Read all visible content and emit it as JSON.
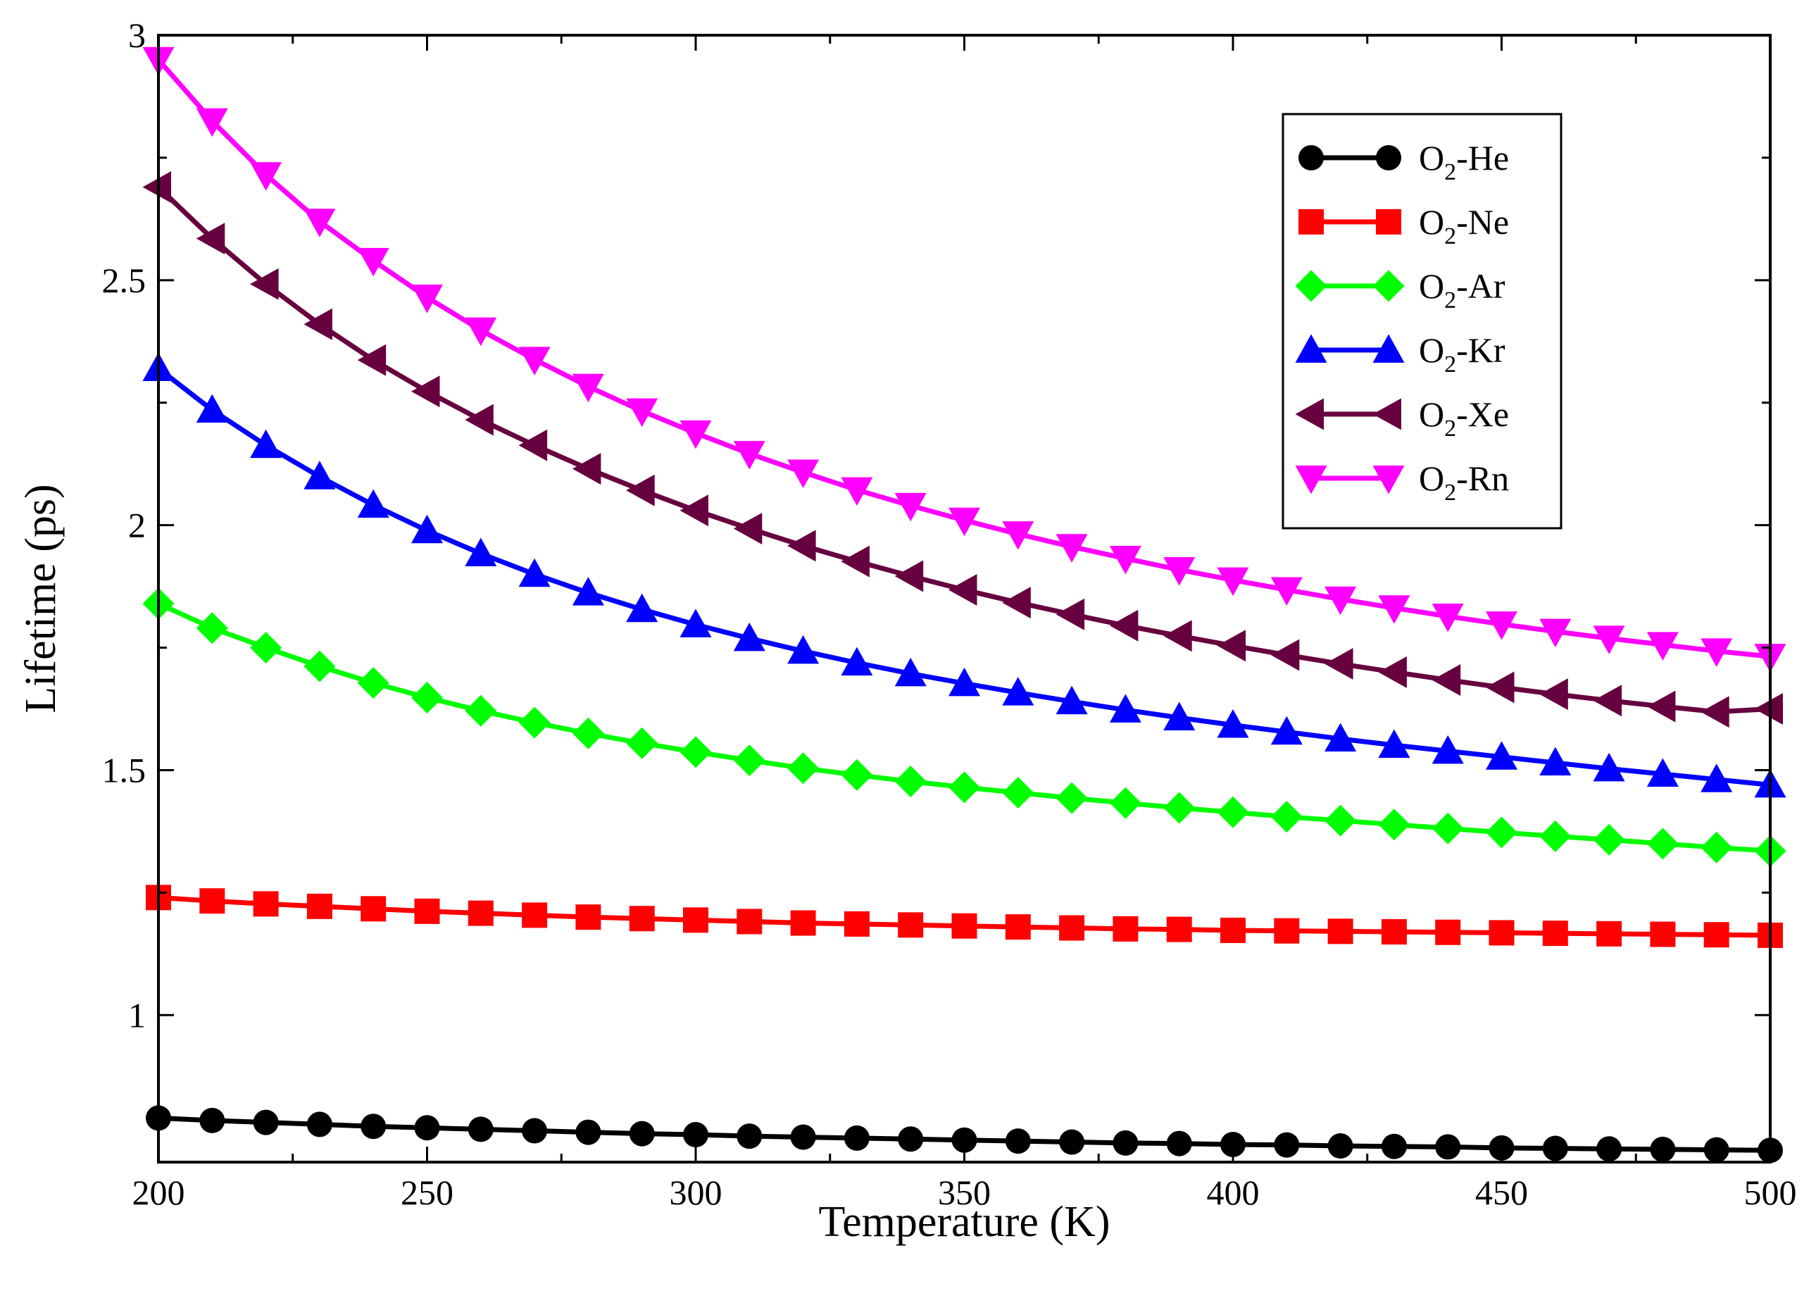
{
  "chart_data": {
    "type": "line",
    "title": "",
    "xlabel": "Temperature (K)",
    "ylabel": "Lifetime (ps)",
    "xlim": [
      200,
      500
    ],
    "ylim": [
      0.7,
      3
    ],
    "x_ticks": [
      "200",
      "250",
      "300",
      "350",
      "400",
      "450",
      "500"
    ],
    "y_ticks": [
      "1",
      "1.5",
      "2",
      "2.5",
      "3"
    ],
    "legend_position": "top-right",
    "x": [
      200,
      210,
      220,
      230,
      240,
      250,
      260,
      270,
      280,
      290,
      300,
      310,
      320,
      330,
      340,
      350,
      360,
      370,
      380,
      390,
      400,
      410,
      420,
      430,
      440,
      450,
      460,
      470,
      480,
      490,
      500
    ],
    "series": [
      {
        "name": "O2-He",
        "legend_base": "O",
        "legend_sub": "2",
        "legend_suffix": "-He",
        "color": "#000000",
        "marker": "circle",
        "values": [
          0.79,
          0.785,
          0.781,
          0.777,
          0.773,
          0.77,
          0.767,
          0.764,
          0.761,
          0.758,
          0.756,
          0.753,
          0.751,
          0.749,
          0.747,
          0.745,
          0.743,
          0.741,
          0.739,
          0.738,
          0.736,
          0.735,
          0.733,
          0.732,
          0.731,
          0.729,
          0.728,
          0.727,
          0.726,
          0.725,
          0.724
        ]
      },
      {
        "name": "O2-Ne",
        "legend_base": "O",
        "legend_sub": "2",
        "legend_suffix": "-Ne",
        "color": "#ff0000",
        "marker": "square",
        "values": [
          1.24,
          1.233,
          1.227,
          1.222,
          1.217,
          1.212,
          1.208,
          1.204,
          1.2,
          1.197,
          1.194,
          1.191,
          1.188,
          1.186,
          1.184,
          1.182,
          1.18,
          1.178,
          1.176,
          1.175,
          1.173,
          1.172,
          1.171,
          1.17,
          1.169,
          1.168,
          1.167,
          1.166,
          1.165,
          1.164,
          1.163
        ]
      },
      {
        "name": "O2-Ar",
        "legend_base": "O",
        "legend_sub": "2",
        "legend_suffix": "-Ar",
        "color": "#00ff00",
        "marker": "diamond",
        "values": [
          1.84,
          1.79,
          1.75,
          1.712,
          1.678,
          1.648,
          1.621,
          1.597,
          1.575,
          1.555,
          1.537,
          1.52,
          1.504,
          1.49,
          1.477,
          1.465,
          1.454,
          1.443,
          1.433,
          1.423,
          1.414,
          1.405,
          1.397,
          1.389,
          1.381,
          1.373,
          1.365,
          1.358,
          1.35,
          1.342,
          1.335
        ]
      },
      {
        "name": "O2-Kr",
        "legend_base": "O",
        "legend_sub": "2",
        "legend_suffix": "-Kr",
        "color": "#0000ff",
        "marker": "triangle-up",
        "values": [
          2.32,
          2.235,
          2.163,
          2.099,
          2.041,
          1.989,
          1.942,
          1.9,
          1.862,
          1.828,
          1.797,
          1.769,
          1.743,
          1.719,
          1.697,
          1.677,
          1.658,
          1.64,
          1.623,
          1.607,
          1.592,
          1.578,
          1.564,
          1.551,
          1.539,
          1.527,
          1.515,
          1.503,
          1.492,
          1.481,
          1.47
        ]
      },
      {
        "name": "O2-Xe",
        "legend_base": "O",
        "legend_sub": "2",
        "legend_suffix": "-Xe",
        "color": "#67003f",
        "marker": "triangle-left",
        "values": [
          2.69,
          2.585,
          2.492,
          2.41,
          2.337,
          2.273,
          2.215,
          2.163,
          2.115,
          2.071,
          2.03,
          1.993,
          1.958,
          1.926,
          1.896,
          1.868,
          1.842,
          1.818,
          1.795,
          1.774,
          1.754,
          1.735,
          1.717,
          1.7,
          1.684,
          1.669,
          1.655,
          1.642,
          1.63,
          1.619,
          1.625
        ]
      },
      {
        "name": "O2-Rn",
        "legend_base": "O",
        "legend_sub": "2",
        "legend_suffix": "-Rn",
        "color": "#ff00ff",
        "marker": "triangle-down",
        "values": [
          2.95,
          2.825,
          2.715,
          2.62,
          2.54,
          2.465,
          2.398,
          2.338,
          2.283,
          2.233,
          2.188,
          2.146,
          2.108,
          2.072,
          2.04,
          2.01,
          1.982,
          1.956,
          1.932,
          1.909,
          1.888,
          1.868,
          1.849,
          1.831,
          1.814,
          1.798,
          1.783,
          1.769,
          1.756,
          1.743,
          1.732
        ]
      }
    ]
  }
}
